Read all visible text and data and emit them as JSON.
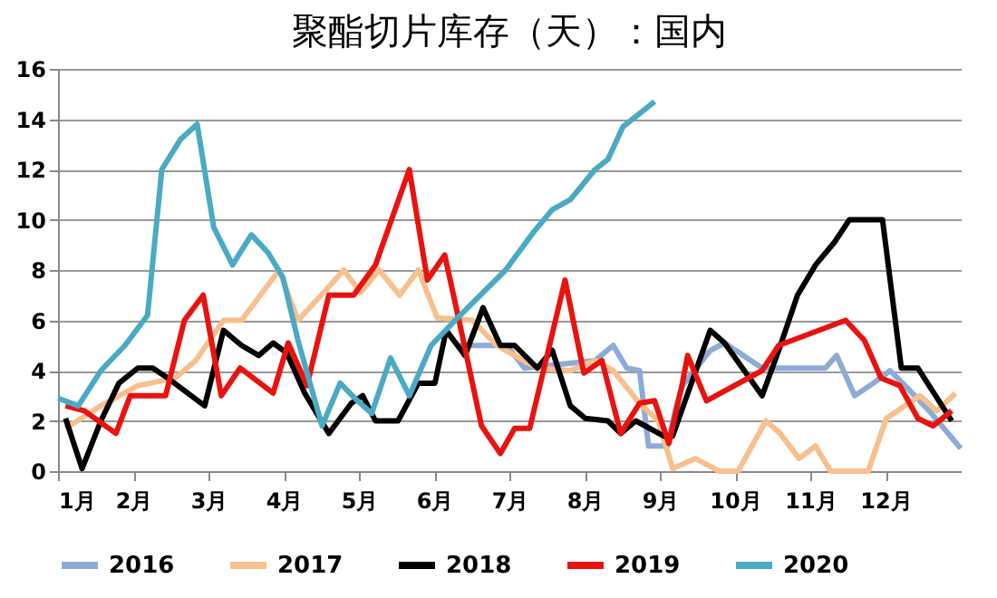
{
  "chart_data": {
    "type": "line",
    "title": "聚酯切片库存（天）：国内",
    "xlim": [
      1,
      13
    ],
    "xticks": [
      {
        "value": 1,
        "label": "1月"
      },
      {
        "value": 2,
        "label": "2月"
      },
      {
        "value": 3,
        "label": "3月"
      },
      {
        "value": 4,
        "label": "4月"
      },
      {
        "value": 5,
        "label": "5月"
      },
      {
        "value": 6,
        "label": "6月"
      },
      {
        "value": 7,
        "label": "7月"
      },
      {
        "value": 8,
        "label": "8月"
      },
      {
        "value": 9,
        "label": "9月"
      },
      {
        "value": 10,
        "label": "10月"
      },
      {
        "value": 11,
        "label": "11月"
      },
      {
        "value": 12,
        "label": "12月"
      }
    ],
    "ylim": [
      0,
      16
    ],
    "yticks": [
      0,
      2,
      4,
      6,
      8,
      10,
      12,
      14,
      16
    ],
    "grid": "y",
    "legend": "bottom",
    "marker": "none",
    "line_style": "solid",
    "series": [
      {
        "name": "2016",
        "color": "#8eaad6",
        "x": [
          6.33,
          6.83,
          7.02,
          7.2,
          8.14,
          8.38,
          8.56,
          8.73,
          8.85,
          9.1,
          9.22,
          9.3,
          9.67,
          9.86,
          10.36,
          11.2,
          11.35,
          11.59,
          11.84,
          12.06,
          12.26,
          12.58,
          13.0
        ],
        "values": [
          5.0,
          5.0,
          4.8,
          4.1,
          4.4,
          5.0,
          4.1,
          4.0,
          1.0,
          1.0,
          2.6,
          3.4,
          4.8,
          5.1,
          4.1,
          4.1,
          4.6,
          3.0,
          3.5,
          4.0,
          3.4,
          2.4,
          0.9
        ]
      },
      {
        "name": "2017",
        "color": "#f7c08e",
        "x": [
          1.1,
          1.57,
          2.06,
          2.56,
          2.83,
          3.2,
          3.44,
          3.94,
          4.19,
          4.53,
          4.8,
          5.02,
          5.27,
          5.54,
          5.79,
          6.04,
          6.51,
          6.83,
          7.37,
          7.81,
          8.14,
          8.38,
          8.73,
          8.98,
          9.17,
          9.47,
          9.79,
          10.04,
          10.41,
          10.6,
          10.85,
          11.07,
          11.27,
          11.77,
          12.01,
          12.26,
          12.46,
          12.68,
          12.93
        ],
        "values": [
          1.7,
          2.6,
          3.4,
          3.7,
          4.4,
          6.0,
          6.0,
          8.0,
          6.0,
          7.1,
          8.0,
          7.1,
          8.0,
          7.0,
          8.0,
          6.1,
          6.0,
          5.0,
          4.1,
          4.0,
          4.4,
          4.0,
          2.7,
          2.0,
          0.1,
          0.5,
          0,
          0,
          2.0,
          1.5,
          0.5,
          1.0,
          0,
          0,
          2.1,
          2.6,
          3.0,
          2.4,
          3.1
        ]
      },
      {
        "name": "2018",
        "color": "#000000",
        "x": [
          1.1,
          1.32,
          1.57,
          1.81,
          2.06,
          2.26,
          2.46,
          2.95,
          3.2,
          3.44,
          3.67,
          3.86,
          4.04,
          4.28,
          4.6,
          4.9,
          5.05,
          5.22,
          5.52,
          5.79,
          6.01,
          6.16,
          6.41,
          6.65,
          6.88,
          7.07,
          7.37,
          7.57,
          7.81,
          8.01,
          8.31,
          8.48,
          8.68,
          9.05,
          9.17,
          9.67,
          9.86,
          10.36,
          10.58,
          10.83,
          11.07,
          11.32,
          11.52,
          11.96,
          12.21,
          12.43,
          12.88
        ],
        "values": [
          2.1,
          0.1,
          2.0,
          3.5,
          4.1,
          4.1,
          3.7,
          2.6,
          5.6,
          5.0,
          4.6,
          5.1,
          4.7,
          3.1,
          1.5,
          2.7,
          3.0,
          2.0,
          2.0,
          3.5,
          3.5,
          5.6,
          4.6,
          6.5,
          5.0,
          5.0,
          4.1,
          4.8,
          2.6,
          2.1,
          2.0,
          1.5,
          2.0,
          1.4,
          1.4,
          5.6,
          5.1,
          3.0,
          4.8,
          7.0,
          8.2,
          9.1,
          10.0,
          10.0,
          4.1,
          4.1,
          2.0
        ]
      },
      {
        "name": "2019",
        "color": "#e8130f",
        "x": [
          1.1,
          1.35,
          1.77,
          1.96,
          2.43,
          2.68,
          2.93,
          3.17,
          3.42,
          3.86,
          4.06,
          4.31,
          4.6,
          4.93,
          5.22,
          5.67,
          5.91,
          6.14,
          6.33,
          6.63,
          6.88,
          7.07,
          7.27,
          7.74,
          7.99,
          8.23,
          8.48,
          8.73,
          8.93,
          9.12,
          9.3,
          9.37,
          9.62,
          10.36,
          10.58,
          11.47,
          11.72,
          11.94,
          12.19,
          12.43,
          12.63,
          12.88
        ],
        "values": [
          2.6,
          2.4,
          1.5,
          3.0,
          3.0,
          6.0,
          7.0,
          3.0,
          4.1,
          3.1,
          5.1,
          3.4,
          7.0,
          7.0,
          8.2,
          12.0,
          7.6,
          8.6,
          6.0,
          1.8,
          0.7,
          1.7,
          1.7,
          7.6,
          3.9,
          4.4,
          1.5,
          2.7,
          2.8,
          1.1,
          3.5,
          4.6,
          2.8,
          4.0,
          5.0,
          6.0,
          5.2,
          3.7,
          3.4,
          2.1,
          1.8,
          2.4
        ]
      },
      {
        "name": "2020",
        "color": "#4aaac3",
        "x": [
          1.0,
          1.27,
          1.57,
          1.89,
          2.19,
          2.38,
          2.63,
          2.85,
          3.07,
          3.32,
          3.57,
          3.79,
          3.99,
          4.19,
          4.51,
          4.75,
          4.98,
          5.17,
          5.42,
          5.67,
          5.96,
          6.28,
          6.58,
          6.95,
          7.32,
          7.57,
          7.81,
          8.14,
          8.31,
          8.51,
          8.93
        ],
        "values": [
          2.9,
          2.6,
          4.0,
          5.0,
          6.2,
          12.0,
          13.2,
          13.8,
          9.7,
          8.2,
          9.4,
          8.7,
          7.7,
          5.2,
          1.8,
          3.5,
          2.8,
          2.3,
          4.5,
          3.0,
          5.0,
          6.0,
          6.9,
          8.0,
          9.5,
          10.4,
          10.8,
          12.0,
          12.4,
          13.7,
          14.7
        ]
      }
    ]
  }
}
